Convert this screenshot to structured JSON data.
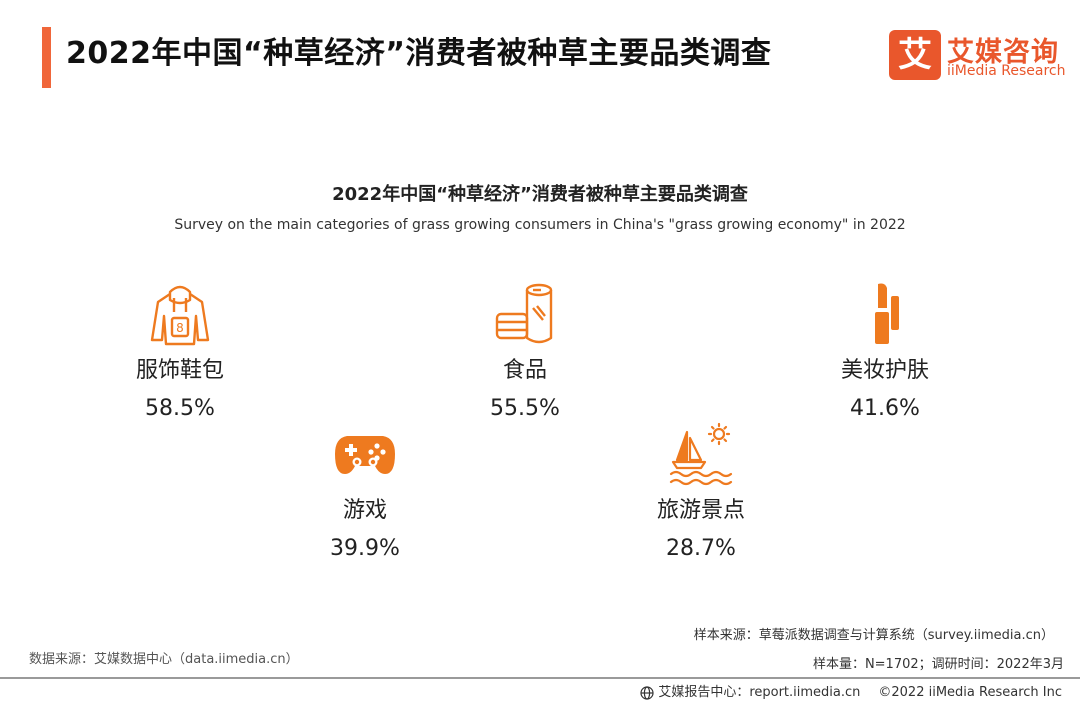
{
  "header": {
    "title": "2022年中国“种草经济”消费者被种草主要品类调查",
    "logo_mark": "艾",
    "logo_cn": "艾媒咨询",
    "logo_en": "iiMedia Research"
  },
  "colors": {
    "accent": "#f0663a",
    "icon": "#ee7a1f"
  },
  "chart_data": {
    "type": "table",
    "title": "2022年中国“种草经济”消费者被种草主要品类调查",
    "subtitle": "Survey on the main categories of grass growing consumers in China's \"grass growing economy\" in 2022",
    "unit": "%",
    "categories": [
      "服饰鞋包",
      "食品",
      "美妆护肤",
      "游戏",
      "旅游景点"
    ],
    "values": [
      58.5,
      55.5,
      41.6,
      39.9,
      28.7
    ],
    "value_labels": [
      "58.5%",
      "55.5%",
      "41.6%",
      "39.9%",
      "28.7%"
    ],
    "icons": [
      "hoodie-icon",
      "food-icon",
      "lipstick-icon",
      "gamepad-icon",
      "sailboat-icon"
    ]
  },
  "footer": {
    "data_source": "数据来源：艾媒数据中心（data.iimedia.cn）",
    "sample_source": "样本来源：草莓派数据调查与计算系统（survey.iimedia.cn）",
    "sample_info": "样本量：N=1702；调研时间：2022年3月",
    "report_center": "艾媒报告中心：report.iimedia.cn",
    "copyright": "©2022  iiMedia Research  Inc"
  }
}
